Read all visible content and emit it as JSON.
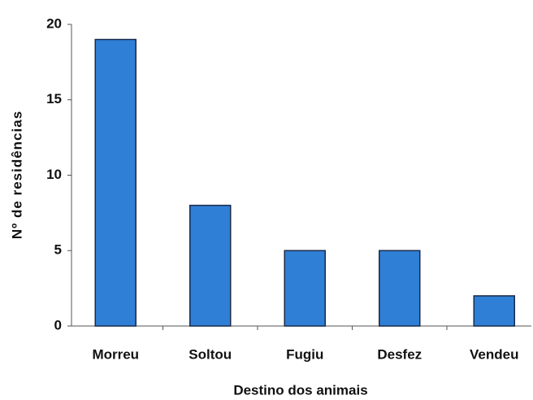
{
  "chart_data": {
    "type": "bar",
    "categories": [
      "Morreu",
      "Soltou",
      "Fugiu",
      "Desfez",
      "Vendeu"
    ],
    "values": [
      19,
      8,
      5,
      5,
      2
    ],
    "color": "#2f7fd6",
    "xlabel": "Destino dos animais",
    "ylabel": "Nº de residências",
    "ylim": [
      0,
      20
    ],
    "yticks": [
      0,
      5,
      10,
      15,
      20
    ],
    "grid": false
  }
}
